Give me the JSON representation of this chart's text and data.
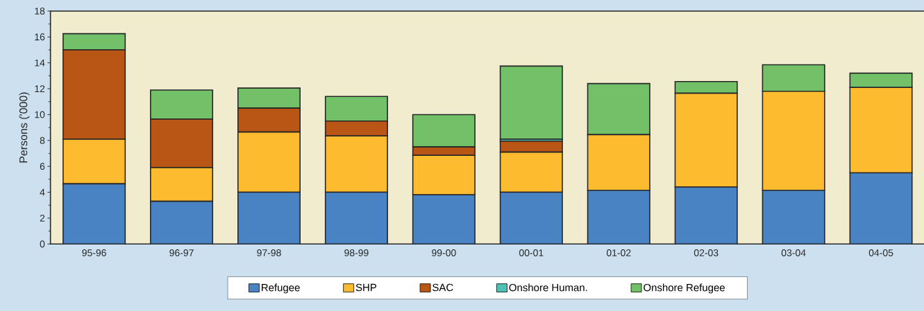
{
  "chart_data": {
    "type": "bar",
    "stacked": true,
    "ylabel": "Persons ('000)",
    "categories": [
      "95-96",
      "96-97",
      "97-98",
      "98-99",
      "99-00",
      "00-01",
      "01-02",
      "02-03",
      "03-04",
      "04-05"
    ],
    "series": [
      {
        "name": "Refugee",
        "color": "#4a83c4",
        "values": [
          4.65,
          3.3,
          4.0,
          4.0,
          3.8,
          4.0,
          4.15,
          4.4,
          4.15,
          5.5
        ]
      },
      {
        "name": "SHP",
        "color": "#fdbb2f",
        "values": [
          3.45,
          2.6,
          4.65,
          4.35,
          3.05,
          3.1,
          4.3,
          7.25,
          7.65,
          6.6
        ]
      },
      {
        "name": "SAC",
        "color": "#b95616",
        "values": [
          6.9,
          3.75,
          1.85,
          1.15,
          0.65,
          0.85,
          0,
          0,
          0,
          0
        ]
      },
      {
        "name": "Onshore Human.",
        "color": "#4fc1b5",
        "values": [
          0,
          0,
          0,
          0,
          0,
          0.15,
          0,
          0,
          0,
          0
        ]
      },
      {
        "name": "Onshore Refugee",
        "color": "#72c169",
        "values": [
          1.25,
          2.25,
          1.55,
          1.9,
          2.5,
          5.65,
          3.95,
          0.9,
          2.05,
          1.1
        ]
      }
    ],
    "ylim": [
      0,
      18
    ],
    "yticks": [
      0,
      2,
      4,
      6,
      8,
      10,
      12,
      14,
      16,
      18
    ],
    "grid": false,
    "legend": "bottom"
  }
}
